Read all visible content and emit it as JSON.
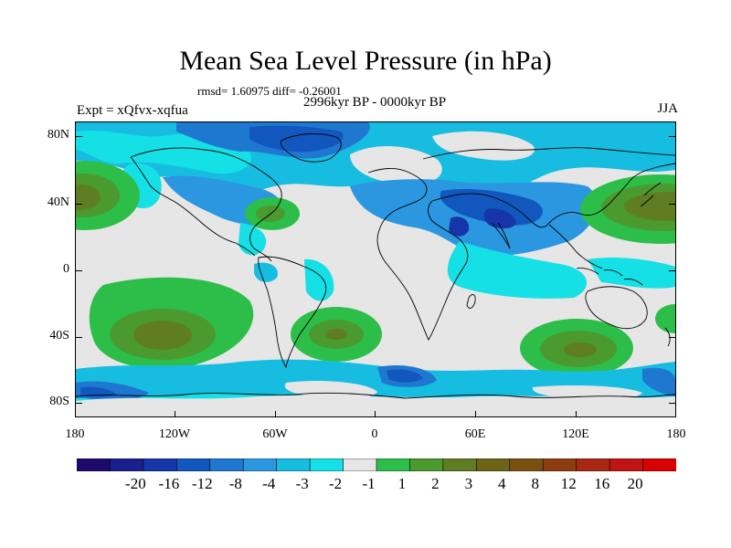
{
  "title": "Mean Sea Level Pressure (in hPa)",
  "stats": "rmsd= 1.60975 diff= -0.26001",
  "subtitle": "2996kyr BP - 0000kyr BP",
  "experiment": "Expt = xQfvx-xqfua",
  "season": "JJA",
  "lat_labels": [
    "80N",
    "40N",
    "0",
    "40S",
    "80S"
  ],
  "lon_labels": [
    "180",
    "120W",
    "60W",
    "0",
    "60E",
    "120E",
    "180"
  ],
  "colorbar": {
    "colors": [
      "#1e0a6e",
      "#1a1f8f",
      "#1535a8",
      "#1257be",
      "#1f78d0",
      "#2a97e0",
      "#17bde0",
      "#14e0e6",
      "#e6e6e6",
      "#2dbe4a",
      "#4a9a30",
      "#5f7d22",
      "#6e6418",
      "#7a5010",
      "#8c3c10",
      "#a82814",
      "#c01414",
      "#d80000"
    ],
    "labels": [
      "-20",
      "-16",
      "-12",
      "-8",
      "-4",
      "-3",
      "-2",
      "-1",
      "1",
      "2",
      "3",
      "4",
      "8",
      "12",
      "16",
      "20"
    ]
  }
}
